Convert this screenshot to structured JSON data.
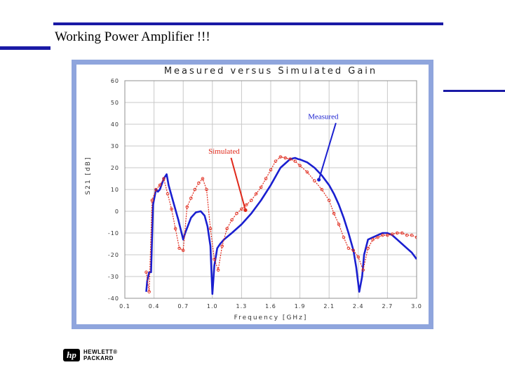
{
  "slide": {
    "title": "Working Power Amplifier !!!",
    "logo_mark": "hp",
    "logo_line1": "HEWLETT®",
    "logo_line2": "PACKARD"
  },
  "colors": {
    "rule": "#1a1aa6",
    "frame": "#8fa5dd",
    "measured": "#1a1fd0",
    "simulated": "#e0291b"
  },
  "chart_data": {
    "type": "line",
    "title": "Measured versus Simulated Gain",
    "xlabel": "Frequency [GHz]",
    "ylabel": "S21 [dB]",
    "xlim": [
      0.1,
      3.0
    ],
    "ylim": [
      -40,
      60
    ],
    "xticks": [
      0.1,
      0.4,
      0.7,
      1.0,
      1.3,
      1.6,
      1.9,
      2.1,
      2.4,
      2.7,
      3.0
    ],
    "xtick_labels": [
      "0.1",
      "0.4",
      "0.7",
      "1.0",
      "1.3",
      "1.6",
      "1.9",
      "2.1",
      "2.4",
      "2.7",
      "3.0"
    ],
    "yticks": [
      -40,
      -30,
      -20,
      -10,
      0,
      10,
      20,
      30,
      40,
      50,
      60
    ],
    "ytick_labels": [
      "-40",
      "-30",
      "-20",
      "-10",
      "0",
      "10",
      "20",
      "30",
      "40",
      "50",
      "60"
    ],
    "grid": true,
    "annotations": [
      {
        "text": "Measured",
        "x": 2.06,
        "y": 42.5,
        "arrow_to": [
          2.03,
          14.5
        ],
        "series": "Measured"
      },
      {
        "text": "Simulated",
        "x": 1.12,
        "y": 26.5,
        "arrow_to": [
          1.34,
          0.5
        ],
        "series": "Simulated"
      }
    ],
    "series": [
      {
        "name": "Measured",
        "style": "solid",
        "x": [
          0.32,
          0.33,
          0.35,
          0.37,
          0.39,
          0.42,
          0.44,
          0.46,
          0.5,
          0.53,
          0.55,
          0.6,
          0.65,
          0.7,
          0.72,
          0.78,
          0.83,
          0.88,
          0.92,
          0.95,
          0.98,
          1.0,
          1.02,
          1.05,
          1.08,
          1.12,
          1.2,
          1.3,
          1.4,
          1.5,
          1.6,
          1.7,
          1.8,
          1.85,
          1.88,
          1.9,
          1.95,
          2.0,
          2.05,
          2.1,
          2.15,
          2.2,
          2.25,
          2.3,
          2.35,
          2.38,
          2.41,
          2.44,
          2.46,
          2.5,
          2.55,
          2.6,
          2.65,
          2.7,
          2.75,
          2.8,
          2.85,
          2.9,
          2.95,
          3.0
        ],
        "y": [
          -37,
          -32,
          -28,
          -28,
          3,
          10,
          9,
          10,
          15,
          17,
          12,
          4,
          -4,
          -13,
          -10,
          -3,
          -0.5,
          0,
          -2,
          -7,
          -16,
          -38,
          -25,
          -17,
          -15,
          -13,
          -10,
          -6,
          -1,
          5,
          12,
          20,
          24,
          24.5,
          24,
          23.8,
          22.5,
          20,
          16.5,
          12,
          8,
          3,
          -3,
          -10,
          -18,
          -26,
          -37,
          -30,
          -20,
          -13,
          -12,
          -11,
          -10,
          -10,
          -11,
          -13,
          -15,
          -17,
          -19,
          -22
        ]
      },
      {
        "name": "Simulated",
        "style": "dotted-markers",
        "x": [
          0.32,
          0.35,
          0.38,
          0.42,
          0.46,
          0.5,
          0.54,
          0.58,
          0.62,
          0.66,
          0.7,
          0.74,
          0.78,
          0.82,
          0.86,
          0.9,
          0.94,
          0.98,
          1.02,
          1.06,
          1.1,
          1.15,
          1.2,
          1.25,
          1.3,
          1.35,
          1.4,
          1.45,
          1.5,
          1.55,
          1.6,
          1.65,
          1.7,
          1.75,
          1.8,
          1.85,
          1.9,
          1.95,
          2.0,
          2.05,
          2.1,
          2.15,
          2.2,
          2.25,
          2.3,
          2.35,
          2.4,
          2.45,
          2.5,
          2.55,
          2.6,
          2.65,
          2.7,
          2.75,
          2.8,
          2.85,
          2.9,
          2.95,
          3.0
        ],
        "y": [
          -28,
          -37,
          5,
          10,
          12,
          15,
          8,
          1,
          -8,
          -17,
          -18,
          2,
          6,
          10,
          13,
          15,
          10,
          -8,
          -22,
          -27,
          -16,
          -8,
          -4,
          -1,
          1,
          3,
          5,
          8,
          11,
          15,
          19,
          23,
          25,
          24.5,
          24,
          23,
          21,
          18,
          14,
          10,
          5,
          -1,
          -6,
          -12,
          -17,
          -18,
          -21,
          -27,
          -17,
          -13,
          -12,
          -11,
          -11,
          -10.5,
          -10,
          -10,
          -11,
          -11,
          -12
        ]
      }
    ]
  }
}
